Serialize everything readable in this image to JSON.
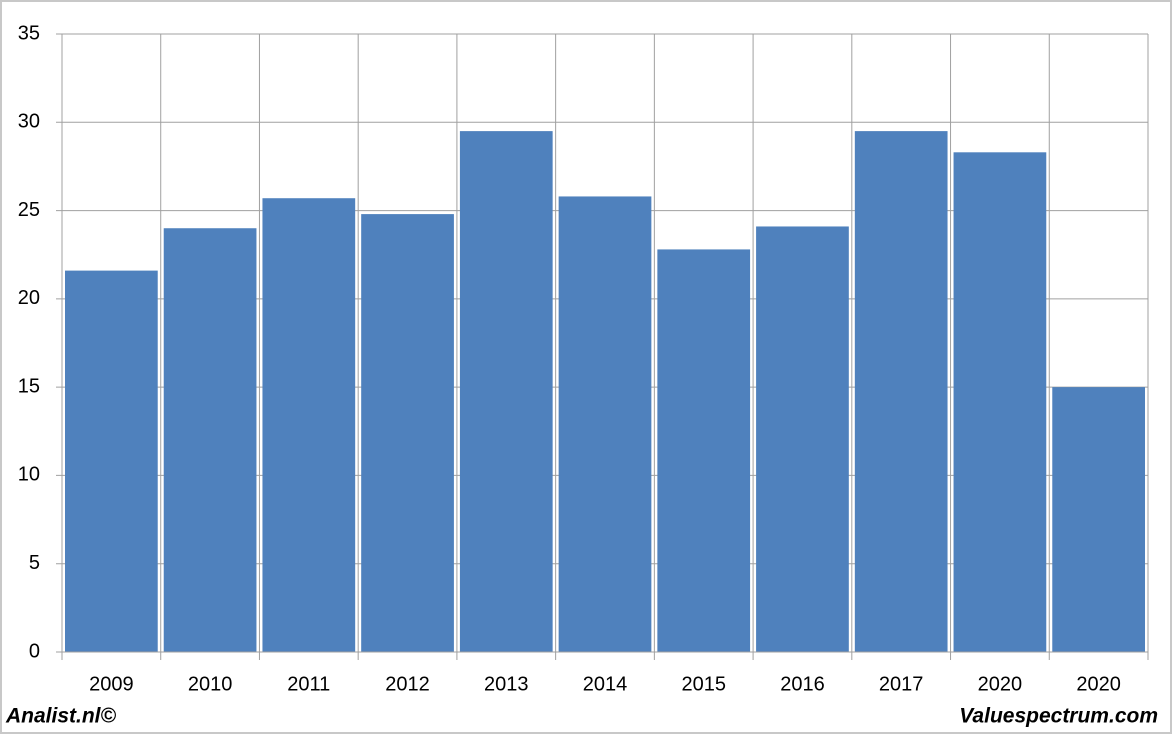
{
  "chart_data": {
    "type": "bar",
    "categories": [
      "2009",
      "2010",
      "2011",
      "2012",
      "2013",
      "2014",
      "2015",
      "2016",
      "2017",
      "2020",
      "2020"
    ],
    "values": [
      21.6,
      24.0,
      25.7,
      24.8,
      29.5,
      25.8,
      22.8,
      24.1,
      29.5,
      28.3,
      15.0
    ],
    "color": "#4f81bd",
    "ylim": [
      0,
      35
    ],
    "yticks": [
      0,
      5,
      10,
      15,
      20,
      25,
      30,
      35
    ],
    "grid": true,
    "annotations": [
      "Analist.nl©",
      "Valuespectrum.com"
    ]
  }
}
